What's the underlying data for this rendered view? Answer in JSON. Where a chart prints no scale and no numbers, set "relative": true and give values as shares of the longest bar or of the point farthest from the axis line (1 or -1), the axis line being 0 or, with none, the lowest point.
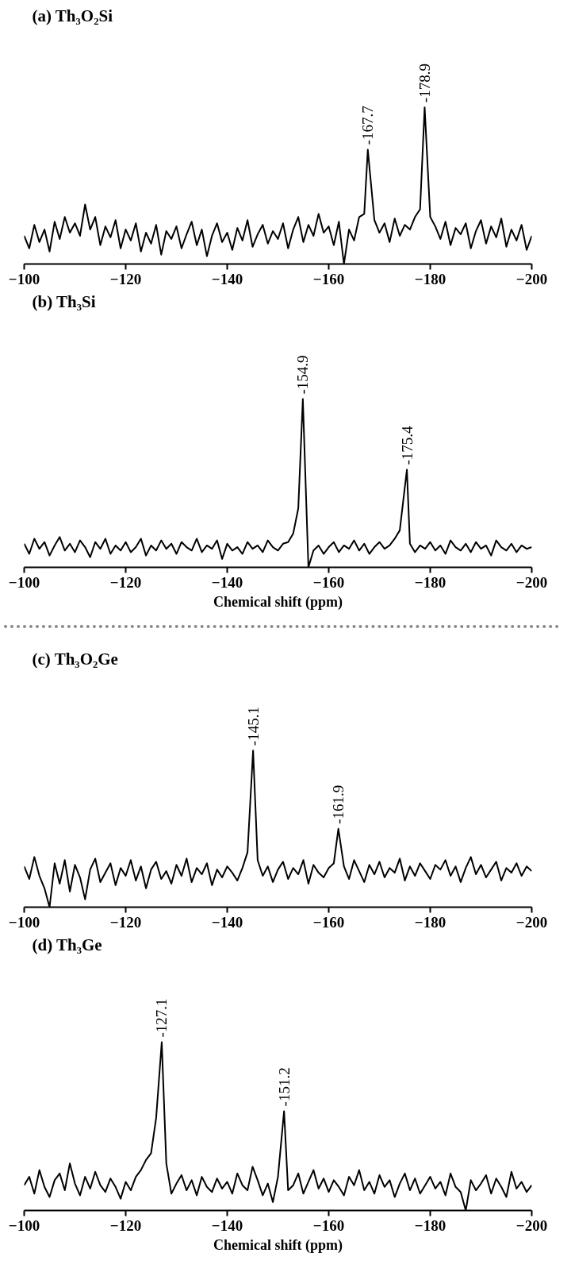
{
  "chart_data": [
    {
      "type": "line",
      "title": "(a) Th₃O₂Si",
      "relative": true,
      "xlim": [
        -100,
        -200
      ],
      "xticks": [
        -100,
        -120,
        -140,
        -160,
        -180,
        -200
      ],
      "x": [
        -100,
        -101,
        -102,
        -103,
        -104,
        -105,
        -106,
        -107,
        -108,
        -109,
        -110,
        -111,
        -112,
        -113,
        -114,
        -115,
        -116,
        -117,
        -118,
        -119,
        -120,
        -121,
        -122,
        -123,
        -124,
        -125,
        -126,
        -127,
        -128,
        -129,
        -130,
        -131,
        -132,
        -133,
        -134,
        -135,
        -136,
        -137,
        -138,
        -139,
        -140,
        -141,
        -142,
        -143,
        -144,
        -145,
        -146,
        -147,
        -148,
        -149,
        -150,
        -151,
        -152,
        -153,
        -154,
        -155,
        -156,
        -157,
        -158,
        -159,
        -160,
        -161,
        -162,
        -163,
        -164,
        -165,
        -166,
        -167,
        -167.7,
        -169,
        -170,
        -171,
        -172,
        -173,
        -174,
        -175,
        -176,
        -177,
        -178,
        -178.9,
        -180,
        -181,
        -182,
        -183,
        -184,
        -185,
        -186,
        -187,
        -188,
        -189,
        -190,
        -191,
        -192,
        -193,
        -194,
        -195,
        -196,
        -197,
        -198,
        -199,
        -200
      ],
      "series": [
        {
          "color": "#000000",
          "values": [
            0.18,
            0.1,
            0.25,
            0.14,
            0.22,
            0.08,
            0.27,
            0.16,
            0.3,
            0.2,
            0.26,
            0.18,
            0.38,
            0.22,
            0.3,
            0.12,
            0.24,
            0.17,
            0.28,
            0.1,
            0.22,
            0.15,
            0.26,
            0.08,
            0.2,
            0.13,
            0.25,
            0.06,
            0.21,
            0.16,
            0.24,
            0.1,
            0.19,
            0.27,
            0.12,
            0.22,
            0.05,
            0.18,
            0.26,
            0.14,
            0.2,
            0.09,
            0.23,
            0.15,
            0.28,
            0.11,
            0.19,
            0.25,
            0.13,
            0.21,
            0.16,
            0.26,
            0.1,
            0.22,
            0.3,
            0.14,
            0.25,
            0.18,
            0.32,
            0.2,
            0.24,
            0.12,
            0.27,
            0.0,
            0.22,
            0.15,
            0.3,
            0.32,
            0.73,
            0.28,
            0.2,
            0.26,
            0.14,
            0.29,
            0.18,
            0.25,
            0.22,
            0.3,
            0.35,
            1.0,
            0.3,
            0.24,
            0.16,
            0.27,
            0.12,
            0.23,
            0.19,
            0.26,
            0.1,
            0.21,
            0.28,
            0.13,
            0.24,
            0.17,
            0.29,
            0.11,
            0.22,
            0.15,
            0.25,
            0.09,
            0.18
          ]
        }
      ],
      "annotations": [
        {
          "text": "-167.7",
          "x": -167.7,
          "y": 0.73
        },
        {
          "text": "-178.9",
          "x": -178.9,
          "y": 1.0
        }
      ]
    },
    {
      "type": "line",
      "title": "(b) Th₃Si",
      "xlabel": "Chemical shift (ppm)",
      "relative": true,
      "xlim": [
        -100,
        -200
      ],
      "xticks": [
        -100,
        -120,
        -140,
        -160,
        -180,
        -200
      ],
      "x": [
        -100,
        -101,
        -102,
        -103,
        -104,
        -105,
        -106,
        -107,
        -108,
        -109,
        -110,
        -111,
        -112,
        -113,
        -114,
        -115,
        -116,
        -117,
        -118,
        -119,
        -120,
        -121,
        -122,
        -123,
        -124,
        -125,
        -126,
        -127,
        -128,
        -129,
        -130,
        -131,
        -132,
        -133,
        -134,
        -135,
        -136,
        -137,
        -138,
        -139,
        -140,
        -141,
        -142,
        -143,
        -144,
        -145,
        -146,
        -147,
        -148,
        -149,
        -150,
        -151,
        -152,
        -153,
        -154,
        -154.9,
        -156,
        -157,
        -158,
        -159,
        -160,
        -161,
        -162,
        -163,
        -164,
        -165,
        -166,
        -167,
        -168,
        -169,
        -170,
        -171,
        -172,
        -173,
        -174,
        -175.4,
        -176,
        -177,
        -178,
        -179,
        -180,
        -181,
        -182,
        -183,
        -184,
        -185,
        -186,
        -187,
        -188,
        -189,
        -190,
        -191,
        -192,
        -193,
        -194,
        -195,
        -196,
        -197,
        -198,
        -199,
        -200
      ],
      "series": [
        {
          "color": "#000000",
          "values": [
            0.14,
            0.08,
            0.17,
            0.11,
            0.15,
            0.07,
            0.13,
            0.18,
            0.1,
            0.14,
            0.09,
            0.16,
            0.12,
            0.06,
            0.15,
            0.11,
            0.17,
            0.08,
            0.13,
            0.1,
            0.15,
            0.09,
            0.12,
            0.17,
            0.07,
            0.13,
            0.1,
            0.16,
            0.11,
            0.14,
            0.08,
            0.15,
            0.12,
            0.1,
            0.17,
            0.09,
            0.13,
            0.11,
            0.16,
            0.05,
            0.14,
            0.1,
            0.12,
            0.08,
            0.15,
            0.11,
            0.13,
            0.09,
            0.16,
            0.12,
            0.1,
            0.14,
            0.15,
            0.2,
            0.35,
            1.0,
            0.0,
            0.1,
            0.13,
            0.08,
            0.12,
            0.15,
            0.09,
            0.13,
            0.11,
            0.16,
            0.1,
            0.14,
            0.08,
            0.12,
            0.15,
            0.11,
            0.13,
            0.17,
            0.22,
            0.58,
            0.14,
            0.09,
            0.13,
            0.11,
            0.15,
            0.1,
            0.13,
            0.08,
            0.16,
            0.12,
            0.1,
            0.14,
            0.09,
            0.15,
            0.11,
            0.13,
            0.07,
            0.16,
            0.12,
            0.1,
            0.14,
            0.09,
            0.13,
            0.11,
            0.12
          ]
        }
      ],
      "annotations": [
        {
          "text": "-154.9",
          "x": -154.9,
          "y": 1.0
        },
        {
          "text": "-175.4",
          "x": -175.4,
          "y": 0.58
        }
      ]
    },
    {
      "type": "line",
      "title": "(c) Th₃O₂Ge",
      "relative": true,
      "xlim": [
        -100,
        -200
      ],
      "xticks": [
        -100,
        -120,
        -140,
        -160,
        -180,
        -200
      ],
      "x": [
        -100,
        -101,
        -102,
        -103,
        -104,
        -105,
        -106,
        -107,
        -108,
        -109,
        -110,
        -111,
        -112,
        -113,
        -114,
        -115,
        -116,
        -117,
        -118,
        -119,
        -120,
        -121,
        -122,
        -123,
        -124,
        -125,
        -126,
        -127,
        -128,
        -129,
        -130,
        -131,
        -132,
        -133,
        -134,
        -135,
        -136,
        -137,
        -138,
        -139,
        -140,
        -141,
        -142,
        -143,
        -144,
        -145.1,
        -146,
        -147,
        -148,
        -149,
        -150,
        -151,
        -152,
        -153,
        -154,
        -155,
        -156,
        -157,
        -158,
        -159,
        -160,
        -161,
        -161.9,
        -163,
        -164,
        -165,
        -166,
        -167,
        -168,
        -169,
        -170,
        -171,
        -172,
        -173,
        -174,
        -175,
        -176,
        -177,
        -178,
        -179,
        -180,
        -181,
        -182,
        -183,
        -184,
        -185,
        -186,
        -187,
        -188,
        -189,
        -190,
        -191,
        -192,
        -193,
        -194,
        -195,
        -196,
        -197,
        -198,
        -199,
        -200
      ],
      "series": [
        {
          "color": "#000000",
          "values": [
            0.26,
            0.18,
            0.32,
            0.2,
            0.12,
            0.0,
            0.28,
            0.15,
            0.3,
            0.1,
            0.27,
            0.19,
            0.05,
            0.24,
            0.31,
            0.16,
            0.22,
            0.28,
            0.14,
            0.25,
            0.2,
            0.3,
            0.17,
            0.26,
            0.12,
            0.24,
            0.29,
            0.18,
            0.23,
            0.15,
            0.27,
            0.2,
            0.31,
            0.16,
            0.25,
            0.21,
            0.28,
            0.14,
            0.24,
            0.19,
            0.26,
            0.22,
            0.17,
            0.25,
            0.35,
            1.0,
            0.3,
            0.2,
            0.26,
            0.16,
            0.24,
            0.29,
            0.18,
            0.25,
            0.21,
            0.3,
            0.15,
            0.27,
            0.22,
            0.19,
            0.25,
            0.28,
            0.5,
            0.26,
            0.18,
            0.3,
            0.23,
            0.16,
            0.27,
            0.21,
            0.29,
            0.19,
            0.25,
            0.22,
            0.31,
            0.17,
            0.26,
            0.2,
            0.28,
            0.23,
            0.18,
            0.27,
            0.24,
            0.3,
            0.2,
            0.26,
            0.16,
            0.25,
            0.32,
            0.21,
            0.27,
            0.19,
            0.24,
            0.29,
            0.17,
            0.25,
            0.22,
            0.28,
            0.2,
            0.26,
            0.23
          ]
        }
      ],
      "annotations": [
        {
          "text": "-145.1",
          "x": -145.1,
          "y": 1.0
        },
        {
          "text": "-161.9",
          "x": -161.9,
          "y": 0.5
        }
      ]
    },
    {
      "type": "line",
      "title": "(d) Th₃Ge",
      "xlabel": "Chemical shift (ppm)",
      "relative": true,
      "xlim": [
        -100,
        -200
      ],
      "xticks": [
        -100,
        -120,
        -140,
        -160,
        -180,
        -200
      ],
      "x": [
        -100,
        -101,
        -102,
        -103,
        -104,
        -105,
        -106,
        -107,
        -108,
        -109,
        -110,
        -111,
        -112,
        -113,
        -114,
        -115,
        -116,
        -117,
        -118,
        -119,
        -120,
        -121,
        -122,
        -123,
        -124,
        -125,
        -126,
        -127.1,
        -128,
        -129,
        -130,
        -131,
        -132,
        -133,
        -134,
        -135,
        -136,
        -137,
        -138,
        -139,
        -140,
        -141,
        -142,
        -143,
        -144,
        -145,
        -146,
        -147,
        -148,
        -149,
        -150,
        -151.2,
        -152,
        -153,
        -154,
        -155,
        -156,
        -157,
        -158,
        -159,
        -160,
        -161,
        -162,
        -163,
        -164,
        -165,
        -166,
        -167,
        -168,
        -169,
        -170,
        -171,
        -172,
        -173,
        -174,
        -175,
        -176,
        -177,
        -178,
        -179,
        -180,
        -181,
        -182,
        -183,
        -184,
        -185,
        -186,
        -187,
        -188,
        -189,
        -190,
        -191,
        -192,
        -193,
        -194,
        -195,
        -196,
        -197,
        -198,
        -199,
        -200
      ],
      "series": [
        {
          "color": "#000000",
          "values": [
            0.15,
            0.2,
            0.1,
            0.24,
            0.14,
            0.08,
            0.18,
            0.22,
            0.12,
            0.28,
            0.16,
            0.09,
            0.2,
            0.13,
            0.23,
            0.15,
            0.11,
            0.19,
            0.14,
            0.07,
            0.17,
            0.12,
            0.2,
            0.24,
            0.3,
            0.34,
            0.55,
            1.0,
            0.28,
            0.1,
            0.16,
            0.21,
            0.12,
            0.18,
            0.09,
            0.2,
            0.14,
            0.11,
            0.19,
            0.13,
            0.17,
            0.1,
            0.22,
            0.15,
            0.12,
            0.26,
            0.18,
            0.09,
            0.16,
            0.05,
            0.2,
            0.59,
            0.12,
            0.15,
            0.22,
            0.1,
            0.17,
            0.24,
            0.13,
            0.19,
            0.11,
            0.18,
            0.14,
            0.09,
            0.2,
            0.15,
            0.24,
            0.12,
            0.17,
            0.1,
            0.21,
            0.14,
            0.18,
            0.08,
            0.16,
            0.22,
            0.12,
            0.19,
            0.1,
            0.15,
            0.2,
            0.13,
            0.17,
            0.09,
            0.22,
            0.14,
            0.11,
            0.0,
            0.18,
            0.12,
            0.16,
            0.21,
            0.1,
            0.19,
            0.14,
            0.08,
            0.23,
            0.13,
            0.17,
            0.11,
            0.15
          ]
        }
      ],
      "annotations": [
        {
          "text": "-127.1",
          "x": -127.1,
          "y": 1.0
        },
        {
          "text": "-151.2",
          "x": -151.2,
          "y": 0.59
        }
      ]
    }
  ]
}
